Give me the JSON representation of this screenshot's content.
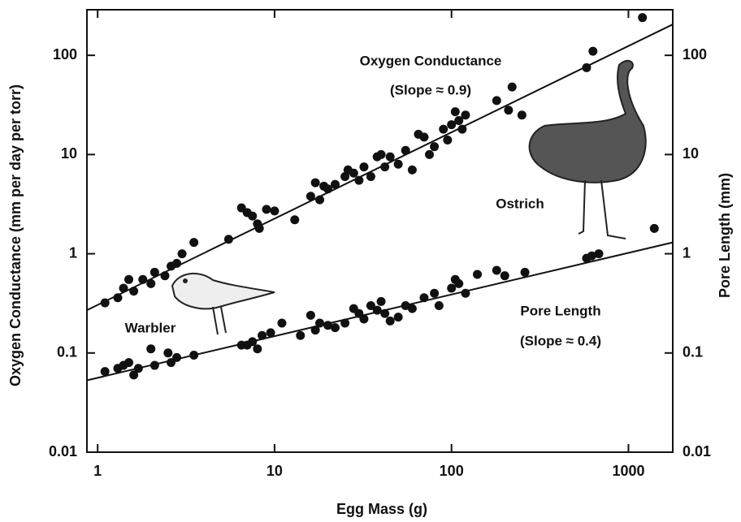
{
  "chart_data": {
    "type": "scatter",
    "xlabel": "Egg Mass (g)",
    "ylabel": "Oxygen Conductance (mm per day per torr)",
    "y2label": "Pore Length (mm)",
    "xscale": "log",
    "yscale": "log",
    "xlim": [
      0.87,
      1780
    ],
    "ylim": [
      0.01,
      288
    ],
    "y2lim": [
      0.01,
      288
    ],
    "xticks": [
      1,
      10,
      100,
      1000
    ],
    "yticks": [
      0.01,
      0.1,
      1,
      10,
      100
    ],
    "y2ticks": [
      0.01,
      0.1,
      1,
      10,
      100
    ],
    "annotations": [
      "Oxygen Conductance",
      "(Slope ≈ 0.9)",
      "Ostrich",
      "Warbler",
      "Pore Length",
      "(Slope ≈ 0.4)"
    ],
    "series": [
      {
        "color": "#111111",
        "x": [
          1.1,
          1.3,
          1.4,
          1.5,
          1.6,
          1.8,
          2.0,
          2.1,
          2.4,
          2.6,
          2.8,
          3.0,
          3.5,
          5.5,
          6.5,
          7.0,
          7.5,
          8,
          8.2,
          9,
          10,
          13,
          16,
          17,
          18,
          19,
          20,
          22,
          25,
          26,
          28,
          30,
          32,
          35,
          38,
          40,
          42,
          45,
          50,
          55,
          60,
          65,
          70,
          75,
          80,
          90,
          95,
          100,
          105,
          110,
          115,
          120,
          180,
          210,
          220,
          250,
          580,
          630,
          1200
        ],
        "values": [
          0.32,
          0.36,
          0.45,
          0.55,
          0.42,
          0.55,
          0.5,
          0.65,
          0.6,
          0.75,
          0.8,
          1.0,
          1.3,
          1.4,
          2.9,
          2.6,
          2.4,
          2.0,
          1.8,
          2.8,
          2.7,
          2.2,
          3.8,
          5.2,
          3.5,
          4.8,
          4.5,
          5.0,
          6.0,
          7.0,
          6.5,
          5.5,
          7.5,
          6.0,
          9.5,
          10,
          7.5,
          9.5,
          8.0,
          11,
          7.0,
          16,
          15,
          10,
          12,
          18,
          14,
          20,
          27,
          22,
          18,
          25,
          35,
          28,
          48,
          25,
          75,
          110,
          240
        ]
      },
      {
        "color": "#111111",
        "axis": "y2",
        "x": [
          1.1,
          1.3,
          1.4,
          1.5,
          1.6,
          1.7,
          2.0,
          2.1,
          2.5,
          2.6,
          2.8,
          3.5,
          6.5,
          7.0,
          7.5,
          8.0,
          8.5,
          9.5,
          11,
          14,
          16,
          17,
          18,
          20,
          22,
          25,
          28,
          30,
          32,
          35,
          38,
          40,
          42,
          45,
          50,
          55,
          60,
          70,
          80,
          85,
          100,
          105,
          110,
          120,
          140,
          180,
          200,
          260,
          580,
          620,
          680,
          1400
        ],
        "values": [
          0.065,
          0.07,
          0.075,
          0.08,
          0.06,
          0.07,
          0.11,
          0.075,
          0.1,
          0.08,
          0.09,
          0.095,
          0.12,
          0.12,
          0.13,
          0.11,
          0.15,
          0.16,
          0.2,
          0.15,
          0.24,
          0.17,
          0.2,
          0.19,
          0.18,
          0.2,
          0.28,
          0.25,
          0.22,
          0.3,
          0.27,
          0.33,
          0.25,
          0.21,
          0.23,
          0.3,
          0.28,
          0.36,
          0.4,
          0.3,
          0.45,
          0.55,
          0.5,
          0.4,
          0.62,
          0.68,
          0.6,
          0.65,
          0.9,
          0.95,
          1.0,
          1.8
        ]
      }
    ],
    "fit_lines": [
      {
        "x": [
          0.87,
          1780
        ],
        "values": [
          0.27,
          205
        ]
      },
      {
        "x": [
          0.87,
          1780
        ],
        "values": [
          0.053,
          1.3
        ],
        "axis": "y2"
      }
    ]
  }
}
